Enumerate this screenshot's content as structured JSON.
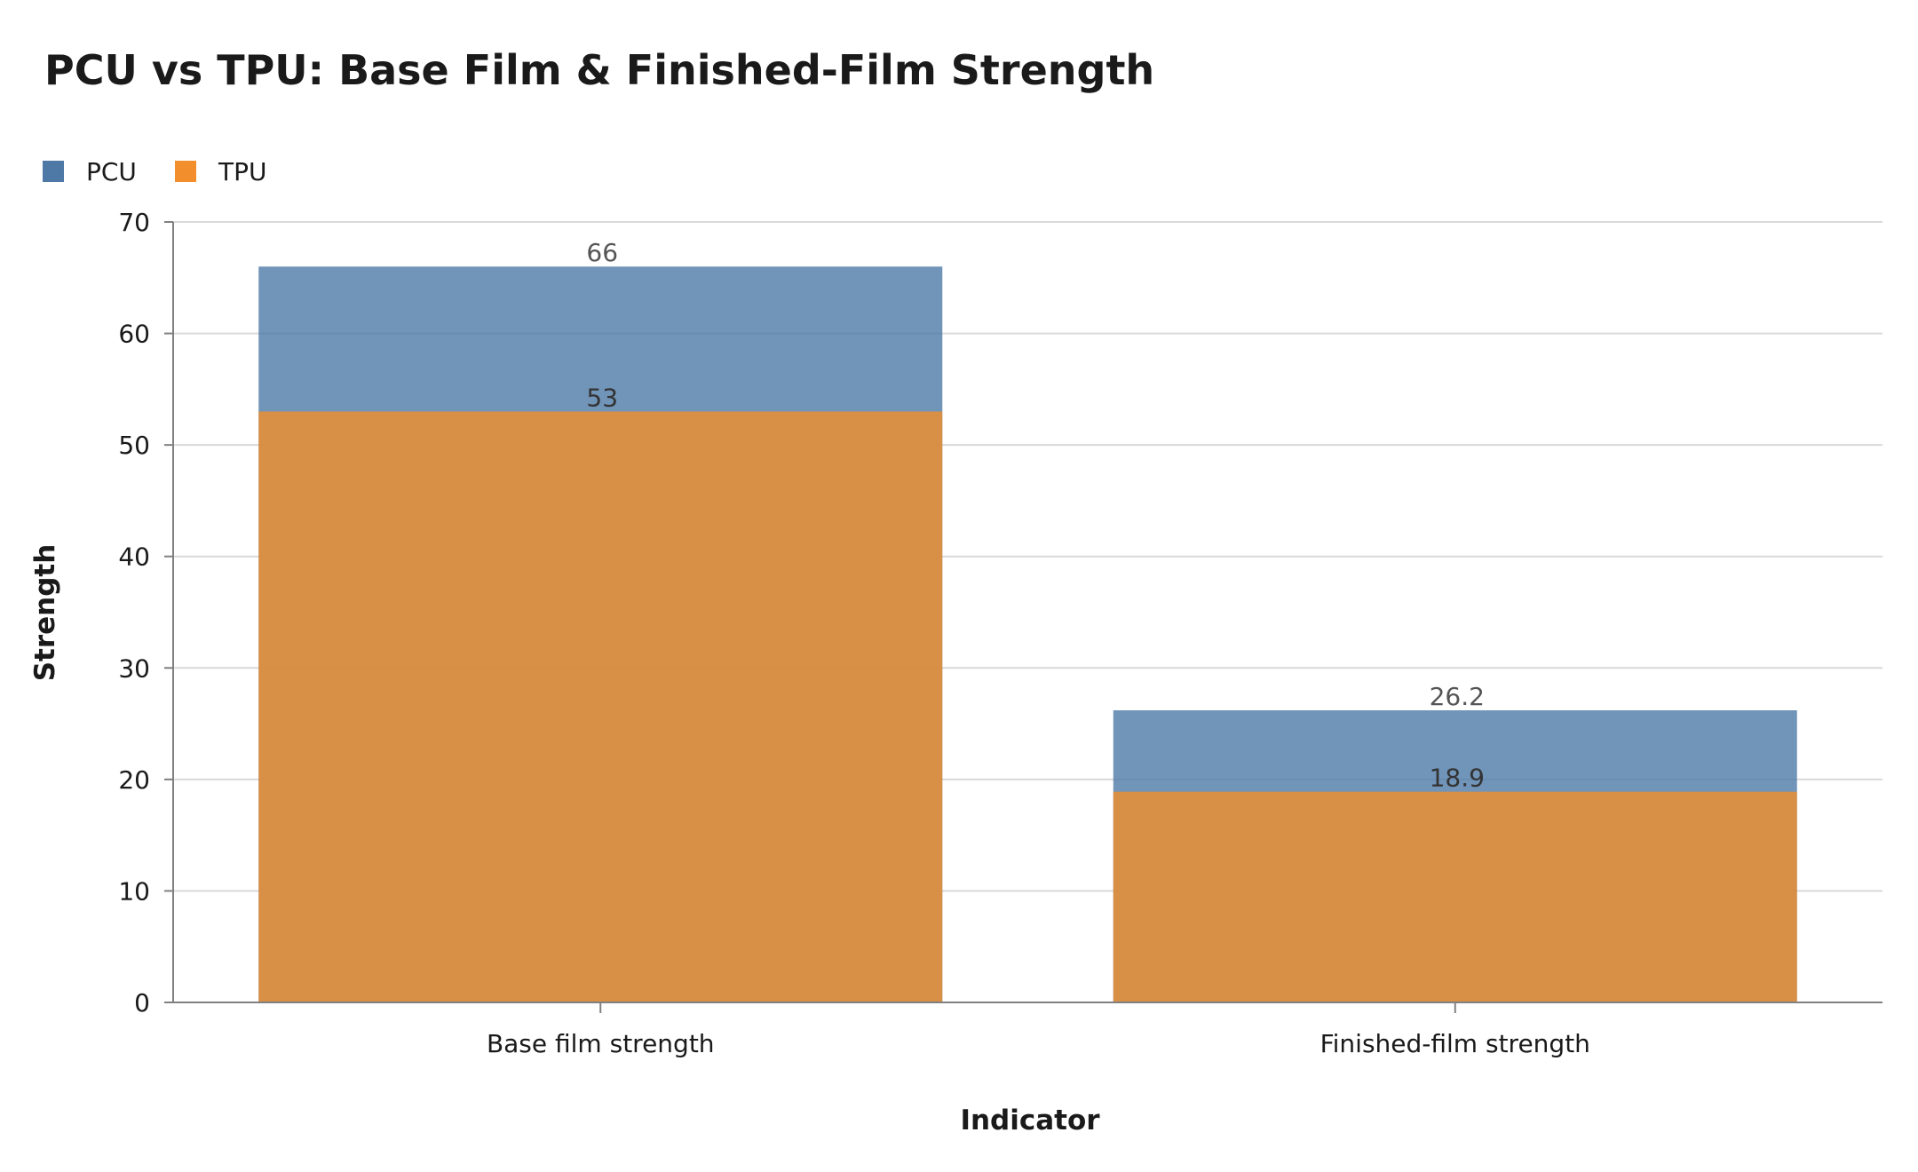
{
  "chart_data": {
    "type": "bar",
    "title": "PCU vs TPU: Base Film & Finished-Film Strength",
    "xlabel": "Indicator",
    "ylabel": "Strength",
    "categories": [
      "Base film strength",
      "Finished-film strength"
    ],
    "series": [
      {
        "name": "PCU",
        "values": [
          66,
          26.2
        ],
        "color": "#4e79a7"
      },
      {
        "name": "TPU",
        "values": [
          53,
          18.9
        ],
        "color": "#f28e2b"
      }
    ],
    "ylim": [
      0,
      70
    ],
    "yticks": [
      0,
      10,
      20,
      30,
      40,
      50,
      60,
      70
    ],
    "grid": true,
    "legend_placement": "top-left",
    "bar_layout": "overlaid"
  }
}
